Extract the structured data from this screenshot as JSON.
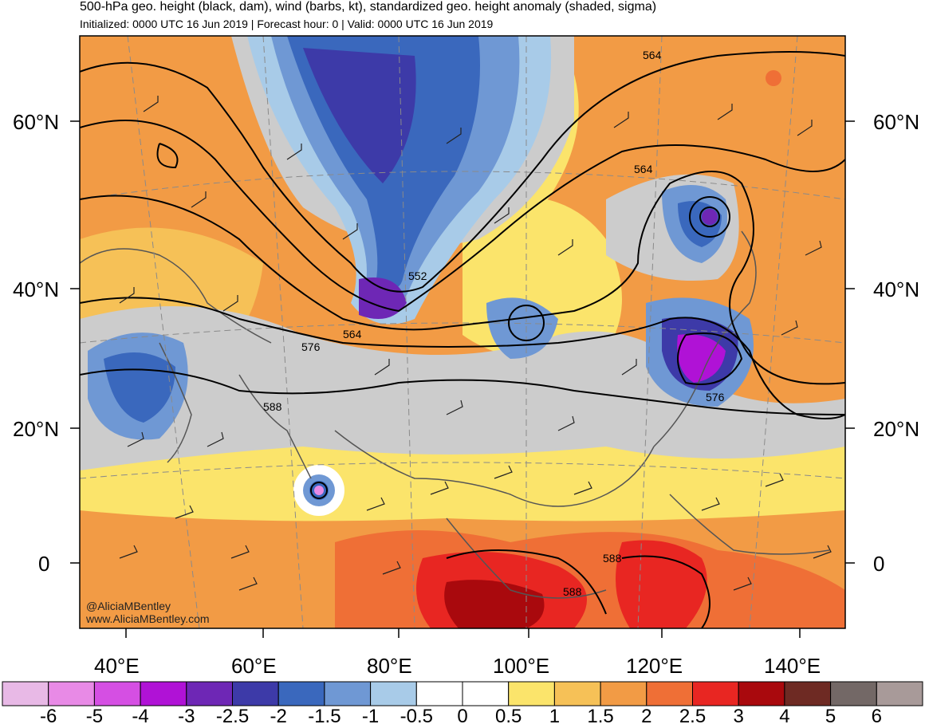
{
  "header": {
    "title": "500-hPa geo. height (black, dam), wind (barbs, kt), standardized geo. height anomaly (shaded, sigma)",
    "subtitle": "Initialized: 0000 UTC 16 Jun 2019 | Forecast hour: 0 | Valid: 0000 UTC 16 Jun 2019"
  },
  "map": {
    "lat_labels": [
      "60°N",
      "40°N",
      "20°N",
      "0"
    ],
    "lon_labels": [
      "40°E",
      "60°E",
      "80°E",
      "100°E",
      "120°E",
      "140°E"
    ],
    "contour_labels": [
      "564",
      "564",
      "552",
      "564",
      "576",
      "588",
      "576",
      "588",
      "588"
    ],
    "credit_handle": "@AliciaMBentley",
    "credit_site": "www.AliciaMBentley.com"
  },
  "colorbar": {
    "colors": [
      "#e8b9e6",
      "#e88ae6",
      "#d54fe3",
      "#b012d6",
      "#6e27b5",
      "#3d3aa8",
      "#3a68bd",
      "#6f98d4",
      "#a8cbe8",
      "#ffffff",
      "#ffffff",
      "#fbe46b",
      "#f6c157",
      "#f29b45",
      "#ef6f36",
      "#e82622",
      "#a9090d",
      "#6e2a23",
      "#736866",
      "#a89a99"
    ],
    "labels": [
      "-6",
      "-5",
      "-4",
      "-3",
      "-2.5",
      "-2",
      "-1.5",
      "-1",
      "-0.5",
      "0",
      "0.5",
      "1",
      "1.5",
      "2",
      "2.5",
      "3",
      "4",
      "5",
      "6"
    ]
  }
}
